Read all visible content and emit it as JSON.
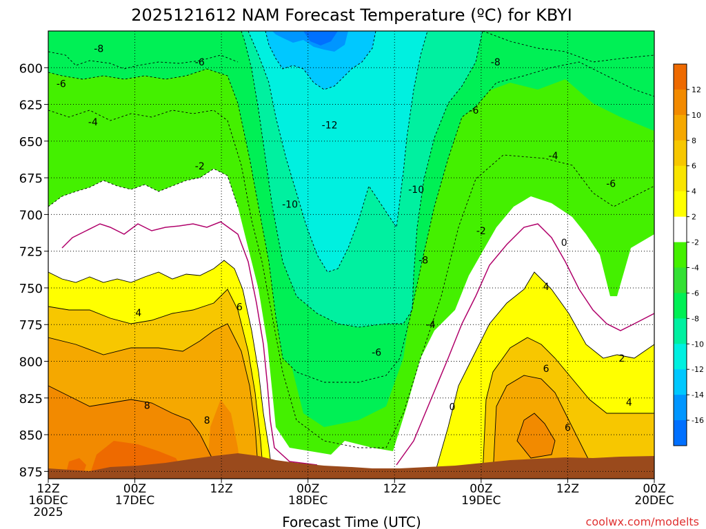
{
  "chart_data": {
    "type": "heatmap",
    "title": "2025121612 NAM Forecast Temperature (ºC) for KBYI",
    "xlabel": "Forecast Time (UTC)",
    "ylabel": "",
    "credit": "coolwx.com/modelts",
    "x_hours": [
      0,
      12,
      24,
      36,
      48,
      60,
      72,
      84
    ],
    "x_tick_labels": [
      {
        "hour": 0,
        "line1": "12Z",
        "line2": "16DEC",
        "line3": "2025"
      },
      {
        "hour": 12,
        "line1": "00Z",
        "line2": "17DEC",
        "line3": ""
      },
      {
        "hour": 24,
        "line1": "12Z",
        "line2": "",
        "line3": ""
      },
      {
        "hour": 36,
        "line1": "00Z",
        "line2": "18DEC",
        "line3": ""
      },
      {
        "hour": 48,
        "line1": "12Z",
        "line2": "",
        "line3": ""
      },
      {
        "hour": 60,
        "line1": "00Z",
        "line2": "19DEC",
        "line3": ""
      },
      {
        "hour": 72,
        "line1": "12Z",
        "line2": "",
        "line3": ""
      },
      {
        "hour": 84,
        "line1": "00Z",
        "line2": "20DEC",
        "line3": ""
      }
    ],
    "x_range": [
      0,
      84
    ],
    "y_range": [
      575,
      880
    ],
    "y_ticks": [
      600,
      625,
      650,
      675,
      700,
      725,
      750,
      775,
      800,
      825,
      850,
      875
    ],
    "y_reversed": true,
    "grid": true,
    "colorbar": {
      "position": "right",
      "levels": [
        12,
        10,
        8,
        6,
        4,
        2,
        -2,
        -4,
        -6,
        -8,
        -10,
        -12,
        -14,
        -16
      ],
      "colors": [
        "#ee6a00",
        "#f28a00",
        "#f5a800",
        "#f7c700",
        "#f9e400",
        "#ffff00",
        "#ffffff",
        "#44f000",
        "#33e033",
        "#00f055",
        "#00f0a0",
        "#00f0e0",
        "#00c8ff",
        "#0096ff",
        "#0070ff"
      ]
    },
    "isotherm_labels": [
      {
        "t": 7,
        "p": 587,
        "label": "-8"
      },
      {
        "t": 1.8,
        "p": 611,
        "label": "-6"
      },
      {
        "t": 21,
        "p": 596,
        "label": "-6"
      },
      {
        "t": 62,
        "p": 596,
        "label": "-8"
      },
      {
        "t": 6.2,
        "p": 637,
        "label": "-4"
      },
      {
        "t": 39,
        "p": 639,
        "label": "-12"
      },
      {
        "t": 59,
        "p": 629,
        "label": "-6"
      },
      {
        "t": 70,
        "p": 660,
        "label": "-4"
      },
      {
        "t": 21,
        "p": 667,
        "label": "-2"
      },
      {
        "t": 33.5,
        "p": 693,
        "label": "-10"
      },
      {
        "t": 51,
        "p": 683,
        "label": "-10"
      },
      {
        "t": 78,
        "p": 679,
        "label": "-6"
      },
      {
        "t": 60,
        "p": 711,
        "label": "-2"
      },
      {
        "t": 71.5,
        "p": 719,
        "label": "0"
      },
      {
        "t": 52,
        "p": 731,
        "label": "-8"
      },
      {
        "t": 53,
        "p": 775,
        "label": "-4"
      },
      {
        "t": 45.5,
        "p": 794,
        "label": "-6"
      },
      {
        "t": 12.5,
        "p": 767,
        "label": "4"
      },
      {
        "t": 26.5,
        "p": 763,
        "label": "6"
      },
      {
        "t": 69,
        "p": 749,
        "label": "4"
      },
      {
        "t": 13.7,
        "p": 830,
        "label": "8"
      },
      {
        "t": 22,
        "p": 840,
        "label": "8"
      },
      {
        "t": 69,
        "p": 805,
        "label": "6"
      },
      {
        "t": 79.5,
        "p": 798,
        "label": "2"
      },
      {
        "t": 80.5,
        "p": 828,
        "label": "4"
      },
      {
        "t": 56,
        "p": 831,
        "label": "0"
      },
      {
        "t": 72,
        "p": 845,
        "label": "6"
      }
    ]
  }
}
